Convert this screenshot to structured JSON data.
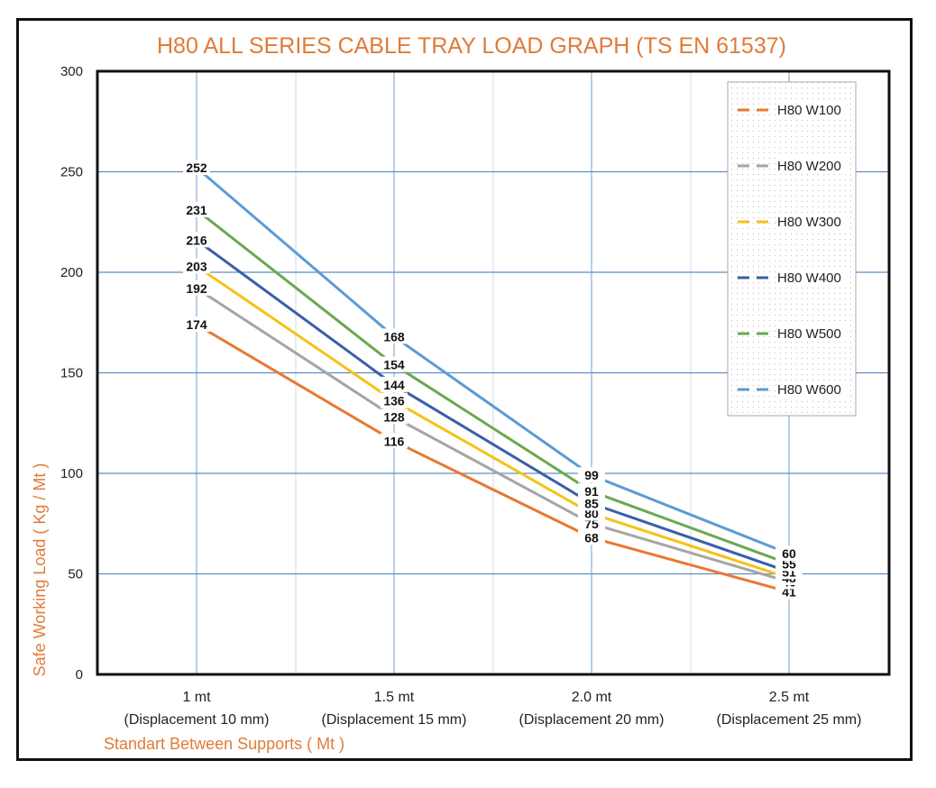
{
  "chart_data": {
    "type": "line",
    "title": "H80 ALL SERIES CABLE TRAY LOAD GRAPH (TS EN 61537)",
    "ylabel": "Safe Working Load ( Kg / Mt )",
    "xlabel": "Standart Between Supports ( Mt )",
    "ylim": [
      0,
      300
    ],
    "yticks": [
      "0",
      "50",
      "100",
      "150",
      "200",
      "250",
      "300"
    ],
    "categories": [
      {
        "line1": "1 mt",
        "line2": "(Displacement 10 mm)"
      },
      {
        "line1": "1.5 mt",
        "line2": "(Displacement 15 mm)"
      },
      {
        "line1": "2.0 mt",
        "line2": "(Displacement 20 mm)"
      },
      {
        "line1": "2.5 mt",
        "line2": "(Displacement 25 mm)"
      }
    ],
    "series": [
      {
        "name": "H80 W100",
        "color": "#e87832",
        "values": [
          174,
          116,
          68,
          41
        ]
      },
      {
        "name": "H80 W200",
        "color": "#a5a5a5",
        "values": [
          192,
          128,
          75,
          46
        ]
      },
      {
        "name": "H80 W300",
        "color": "#f5c216",
        "values": [
          203,
          136,
          80,
          48
        ]
      },
      {
        "name": "H80 W400",
        "color": "#3a5ea8",
        "values": [
          216,
          144,
          85,
          51
        ]
      },
      {
        "name": "H80 W500",
        "color": "#6aa84f",
        "values": [
          231,
          154,
          91,
          55
        ]
      },
      {
        "name": "H80 W600",
        "color": "#5b9bd5",
        "values": [
          252,
          168,
          99,
          60
        ]
      }
    ],
    "grid": true,
    "legend_position": "top-right"
  }
}
